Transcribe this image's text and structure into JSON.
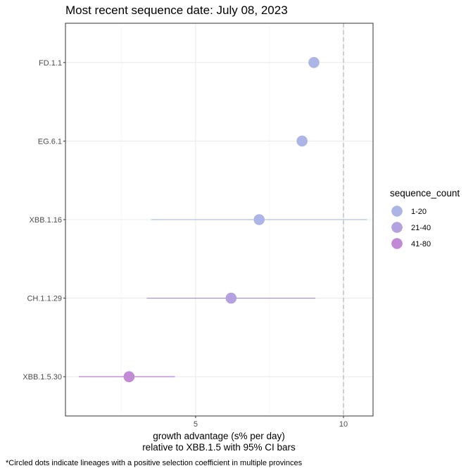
{
  "chart_data": {
    "type": "scatter",
    "title": "Most recent sequence date: July 08, 2023",
    "xlabel_line1": "growth advantage (s% per day)",
    "xlabel_line2": "relative to  XBB.1.5  with 95% CI bars",
    "ylabel": "",
    "xlim": [
      0.6,
      11.0
    ],
    "x_ticks": [
      5,
      10
    ],
    "x_tick_labels": [
      "5",
      "10"
    ],
    "reference_line_x": 10,
    "grid": true,
    "categories": [
      "FD.1.1",
      "EG.6.1",
      "XBB.1.16",
      "CH.1.1.29",
      "XBB.1.5.30"
    ],
    "points": [
      {
        "lineage": "FD.1.1",
        "x": 9.0,
        "ci_low": null,
        "ci_high": null,
        "sequence_count": "1-20"
      },
      {
        "lineage": "EG.6.1",
        "x": 8.6,
        "ci_low": null,
        "ci_high": null,
        "sequence_count": "1-20"
      },
      {
        "lineage": "XBB.1.16",
        "x": 7.15,
        "ci_low": 3.5,
        "ci_high": 10.8,
        "sequence_count": "1-20"
      },
      {
        "lineage": "CH.1.1.29",
        "x": 6.2,
        "ci_low": 3.35,
        "ci_high": 9.05,
        "sequence_count": "21-40"
      },
      {
        "lineage": "XBB.1.5.30",
        "x": 2.75,
        "ci_low": 1.05,
        "ci_high": 4.3,
        "sequence_count": "41-80"
      }
    ],
    "legend": {
      "title": "sequence_count",
      "placement": "right",
      "items": [
        {
          "label": "1-20",
          "color": "#abb5e6",
          "line_color": "#b0c4de"
        },
        {
          "label": "21-40",
          "color": "#b3a1e0",
          "line_color": "#a993d9"
        },
        {
          "label": "41-80",
          "color": "#c08ad6",
          "line_color": "#c08ad6"
        }
      ]
    },
    "caption": "*Circled dots indicate lineages with a positive selection coefficient in multiple provinces"
  }
}
